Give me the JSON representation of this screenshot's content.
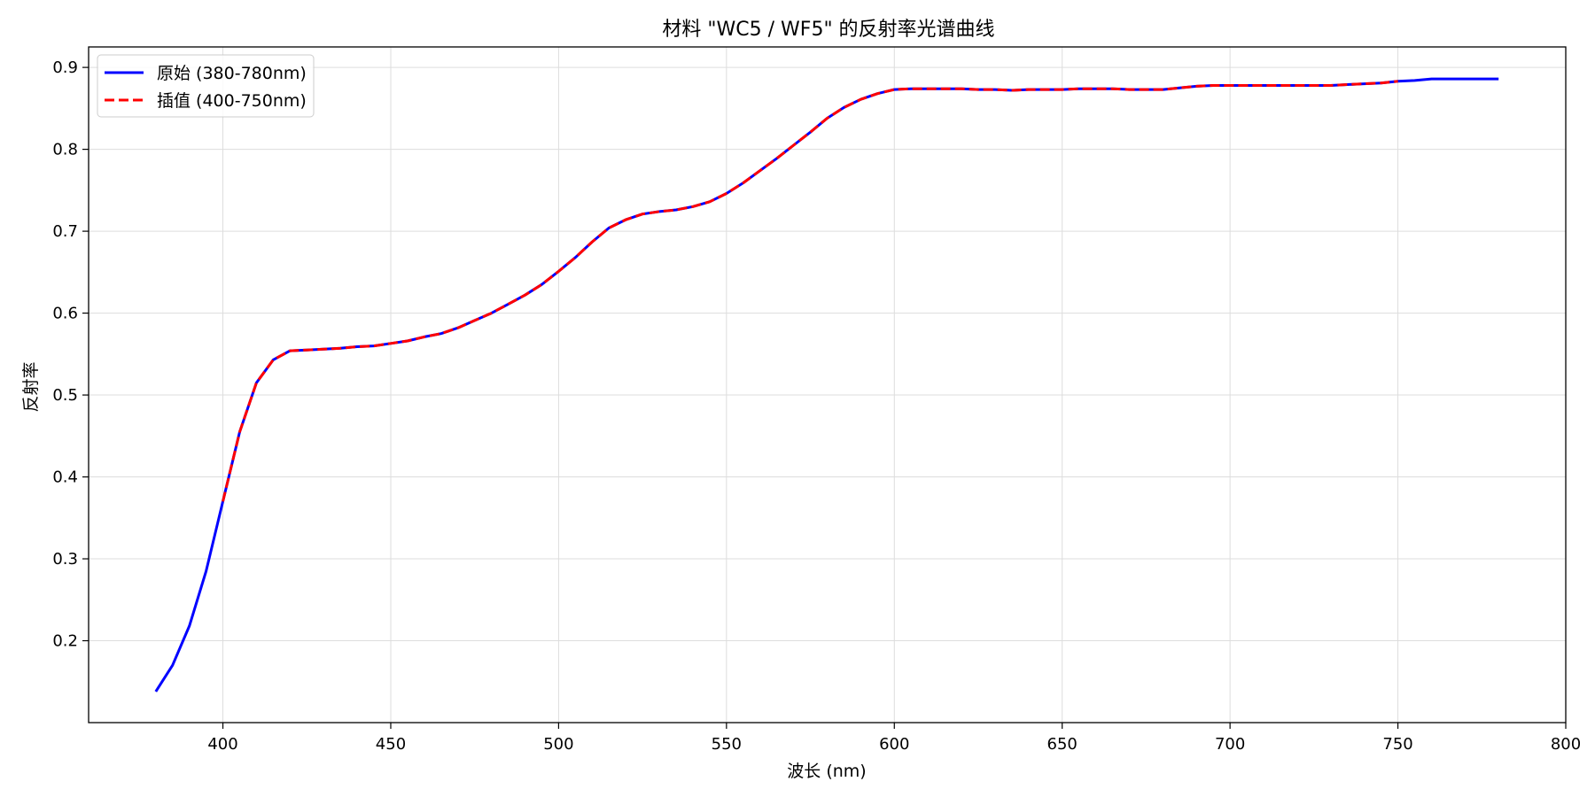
{
  "chart_data": {
    "type": "line",
    "title": "材料 \"WC5 / WF5\" 的反射率光谱曲线",
    "xlabel": "波长 (nm)",
    "ylabel": "反射率",
    "xlim": [
      360,
      800
    ],
    "ylim": [
      0.1,
      0.925
    ],
    "xticks": [
      400,
      450,
      500,
      550,
      600,
      650,
      700,
      750,
      800
    ],
    "yticks": [
      0.2,
      0.3,
      0.4,
      0.5,
      0.6,
      0.7,
      0.8,
      0.9
    ],
    "grid": true,
    "legend_position": "top-left",
    "series": [
      {
        "name": "原始 (380-780nm)",
        "color": "#0000ff",
        "style": "solid",
        "x": [
          380,
          385,
          390,
          395,
          400,
          405,
          410,
          415,
          420,
          425,
          430,
          435,
          440,
          445,
          450,
          455,
          460,
          465,
          470,
          475,
          480,
          485,
          490,
          495,
          500,
          505,
          510,
          515,
          520,
          525,
          530,
          535,
          540,
          545,
          550,
          555,
          560,
          565,
          570,
          575,
          580,
          585,
          590,
          595,
          600,
          605,
          610,
          615,
          620,
          625,
          630,
          635,
          640,
          645,
          650,
          655,
          660,
          665,
          670,
          675,
          680,
          685,
          690,
          695,
          700,
          705,
          710,
          715,
          720,
          725,
          730,
          735,
          740,
          745,
          750,
          755,
          760,
          765,
          770,
          775,
          780
        ],
        "y": [
          0.138,
          0.17,
          0.218,
          0.285,
          0.37,
          0.455,
          0.515,
          0.543,
          0.554,
          0.555,
          0.556,
          0.557,
          0.559,
          0.56,
          0.563,
          0.566,
          0.571,
          0.575,
          0.582,
          0.591,
          0.6,
          0.611,
          0.622,
          0.635,
          0.651,
          0.668,
          0.687,
          0.704,
          0.714,
          0.721,
          0.724,
          0.726,
          0.73,
          0.736,
          0.746,
          0.759,
          0.774,
          0.789,
          0.805,
          0.821,
          0.838,
          0.851,
          0.861,
          0.868,
          0.873,
          0.874,
          0.874,
          0.874,
          0.874,
          0.873,
          0.873,
          0.872,
          0.873,
          0.873,
          0.873,
          0.874,
          0.874,
          0.874,
          0.873,
          0.873,
          0.873,
          0.875,
          0.877,
          0.878,
          0.878,
          0.878,
          0.878,
          0.878,
          0.878,
          0.878,
          0.878,
          0.879,
          0.88,
          0.881,
          0.883,
          0.884,
          0.886,
          0.886,
          0.886,
          0.886,
          0.886
        ]
      },
      {
        "name": "插值 (400-750nm)",
        "color": "#ff0000",
        "style": "dashed",
        "x": [
          400,
          405,
          410,
          415,
          420,
          425,
          430,
          435,
          440,
          445,
          450,
          455,
          460,
          465,
          470,
          475,
          480,
          485,
          490,
          495,
          500,
          505,
          510,
          515,
          520,
          525,
          530,
          535,
          540,
          545,
          550,
          555,
          560,
          565,
          570,
          575,
          580,
          585,
          590,
          595,
          600,
          605,
          610,
          615,
          620,
          625,
          630,
          635,
          640,
          645,
          650,
          655,
          660,
          665,
          670,
          675,
          680,
          685,
          690,
          695,
          700,
          705,
          710,
          715,
          720,
          725,
          730,
          735,
          740,
          745,
          750
        ],
        "y": [
          0.37,
          0.455,
          0.515,
          0.543,
          0.554,
          0.555,
          0.556,
          0.557,
          0.559,
          0.56,
          0.563,
          0.566,
          0.571,
          0.575,
          0.582,
          0.591,
          0.6,
          0.611,
          0.622,
          0.635,
          0.651,
          0.668,
          0.687,
          0.704,
          0.714,
          0.721,
          0.724,
          0.726,
          0.73,
          0.736,
          0.746,
          0.759,
          0.774,
          0.789,
          0.805,
          0.821,
          0.838,
          0.851,
          0.861,
          0.868,
          0.873,
          0.874,
          0.874,
          0.874,
          0.874,
          0.873,
          0.873,
          0.872,
          0.873,
          0.873,
          0.873,
          0.874,
          0.874,
          0.874,
          0.873,
          0.873,
          0.873,
          0.875,
          0.877,
          0.878,
          0.878,
          0.878,
          0.878,
          0.878,
          0.878,
          0.878,
          0.878,
          0.879,
          0.88,
          0.881,
          0.883
        ]
      }
    ]
  }
}
